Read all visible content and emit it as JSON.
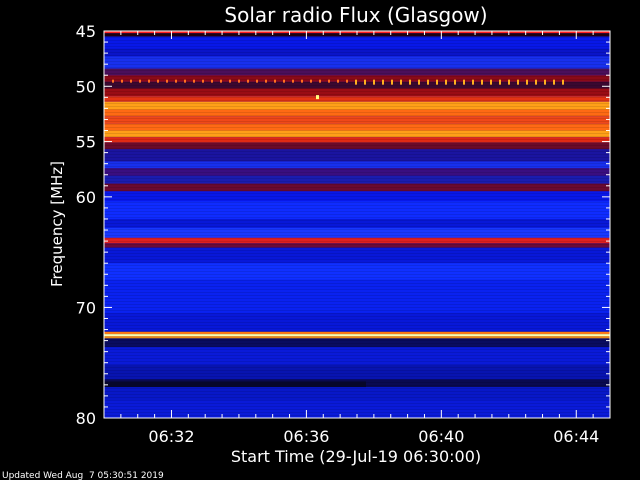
{
  "chart_data": {
    "type": "heatmap",
    "title": "Solar radio Flux (Glasgow)",
    "xlabel": "Start Time (29-Jul-19 06:30:00)",
    "ylabel": "Frequency [MHz]",
    "footer": "Updated Wed Aug  7 05:30:51 2019",
    "x_ticks": [
      "06:32",
      "06:36",
      "06:40",
      "06:44"
    ],
    "x_tick_minutes": [
      2,
      6,
      10,
      14
    ],
    "xlim_minutes": [
      0,
      15
    ],
    "y_ticks": [
      45,
      50,
      55,
      60,
      70,
      80
    ],
    "ylim": [
      45,
      80
    ],
    "bands": [
      {
        "from": 45,
        "to": 45.2,
        "color": "#ff2020"
      },
      {
        "from": 45.2,
        "to": 45.5,
        "color": "#200010"
      },
      {
        "from": 45.5,
        "to": 46.6,
        "color": "#0818e8"
      },
      {
        "from": 46.6,
        "to": 47.3,
        "color": "#0a14c8"
      },
      {
        "from": 47.3,
        "to": 48.4,
        "color": "#1830ee"
      },
      {
        "from": 48.4,
        "to": 49.0,
        "color": "#4a0f5a"
      },
      {
        "from": 49.0,
        "to": 49.6,
        "color": "#8a0a18"
      },
      {
        "from": 49.6,
        "to": 50.2,
        "color": "#3a0830"
      },
      {
        "from": 50.2,
        "to": 50.9,
        "color": "#9a0c14"
      },
      {
        "from": 50.9,
        "to": 51.4,
        "color": "#e43414"
      },
      {
        "from": 51.4,
        "to": 52.1,
        "color": "#ffa018"
      },
      {
        "from": 52.1,
        "to": 52.7,
        "color": "#ff6a14"
      },
      {
        "from": 52.7,
        "to": 53.4,
        "color": "#f04818"
      },
      {
        "from": 53.4,
        "to": 54.0,
        "color": "#ff6a14"
      },
      {
        "from": 54.0,
        "to": 54.6,
        "color": "#ffa018"
      },
      {
        "from": 54.6,
        "to": 55.1,
        "color": "#e02a14"
      },
      {
        "from": 55.1,
        "to": 55.7,
        "color": "#6a0a2a"
      },
      {
        "from": 55.7,
        "to": 56.8,
        "color": "#1a14a0"
      },
      {
        "from": 56.8,
        "to": 57.4,
        "color": "#1830ee"
      },
      {
        "from": 57.4,
        "to": 58.1,
        "color": "#3a0e80"
      },
      {
        "from": 58.1,
        "to": 58.8,
        "color": "#1a1cb0"
      },
      {
        "from": 58.8,
        "to": 59.5,
        "color": "#6a0a30"
      },
      {
        "from": 59.5,
        "to": 60.4,
        "color": "#0818e8"
      },
      {
        "from": 60.4,
        "to": 62.0,
        "color": "#0f2cff"
      },
      {
        "from": 62.0,
        "to": 62.8,
        "color": "#0818d8"
      },
      {
        "from": 62.8,
        "to": 63.7,
        "color": "#1838ff"
      },
      {
        "from": 63.7,
        "to": 64.2,
        "color": "#e02020"
      },
      {
        "from": 64.2,
        "to": 64.6,
        "color": "#6a0a3a"
      },
      {
        "from": 64.6,
        "to": 66.0,
        "color": "#0818d8"
      },
      {
        "from": 66.0,
        "to": 67.5,
        "color": "#1030ff"
      },
      {
        "from": 67.5,
        "to": 70.5,
        "color": "#0a22f0"
      },
      {
        "from": 70.5,
        "to": 72.2,
        "color": "#0818d8"
      },
      {
        "from": 72.2,
        "to": 72.4,
        "color": "#ff7a10"
      },
      {
        "from": 72.4,
        "to": 72.6,
        "color": "#ffffb0"
      },
      {
        "from": 72.6,
        "to": 72.8,
        "color": "#ff9a18"
      },
      {
        "from": 72.8,
        "to": 73.6,
        "color": "#0a0c60"
      },
      {
        "from": 73.6,
        "to": 75.2,
        "color": "#0a1ad8"
      },
      {
        "from": 75.2,
        "to": 76.5,
        "color": "#0814b0"
      },
      {
        "from": 76.5,
        "to": 77.2,
        "color": "#0a0a50"
      },
      {
        "from": 77.2,
        "to": 78.4,
        "color": "#0818c8"
      },
      {
        "from": 78.4,
        "to": 80,
        "color": "#0a1ad8"
      }
    ]
  }
}
